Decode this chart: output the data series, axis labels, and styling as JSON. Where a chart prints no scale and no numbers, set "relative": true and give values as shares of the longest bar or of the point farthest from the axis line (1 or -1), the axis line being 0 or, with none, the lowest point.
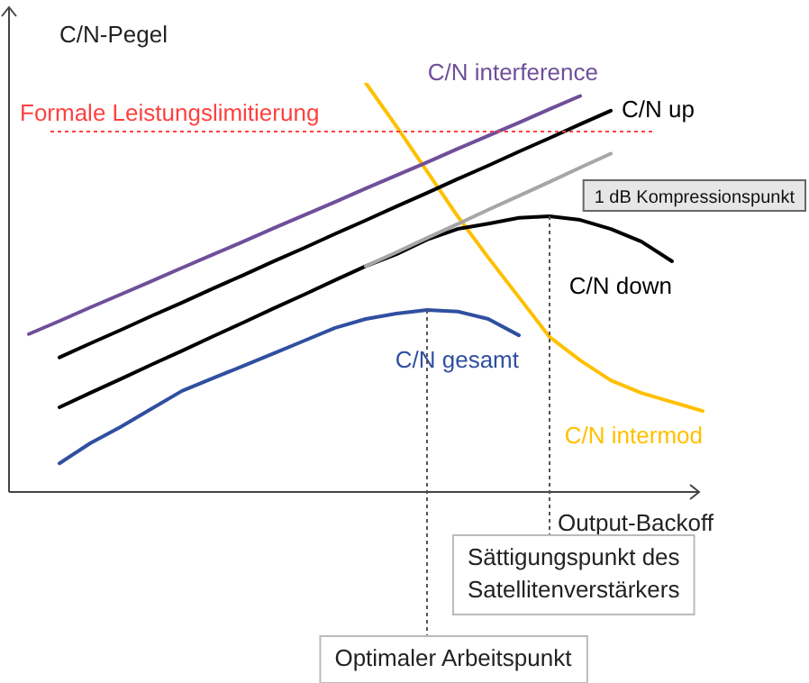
{
  "chart_data": {
    "type": "line",
    "relative": true,
    "tick_labels": false,
    "grid": false,
    "legend": false,
    "marker": "none",
    "line_style": "solid",
    "xlabel": "Output-Backoff",
    "ylabel": "C/N-Pegel",
    "categories": [
      null,
      null,
      null,
      null,
      null,
      null,
      null,
      null,
      null,
      null,
      null,
      null,
      null,
      null,
      null,
      null,
      null,
      null,
      null,
      null,
      null,
      null,
      null
    ],
    "series": [
      {
        "name": "C/N interference",
        "color": "#6f4f9a",
        "values": [
          0.386,
          0.418,
          0.451,
          0.483,
          0.515,
          0.548,
          0.58,
          0.612,
          0.645,
          0.677,
          0.709,
          0.742,
          0.774,
          0.806,
          0.839,
          0.871,
          0.903,
          0.936,
          0.968,
          null,
          null,
          null,
          null
        ]
      },
      {
        "name": "C/N up",
        "color": "#000000",
        "values": [
          null,
          0.329,
          0.363,
          0.396,
          0.43,
          0.463,
          0.497,
          0.53,
          0.564,
          0.597,
          0.631,
          0.664,
          0.698,
          0.731,
          0.765,
          0.798,
          0.832,
          0.865,
          0.899,
          0.932,
          null,
          null,
          null
        ]
      },
      {
        "color": "#a6a6a6",
        "values": [
          null,
          null,
          null,
          null,
          null,
          null,
          null,
          null,
          null,
          null,
          null,
          0.552,
          0.586,
          0.621,
          0.655,
          0.69,
          0.724,
          0.758,
          0.793,
          0.827,
          null,
          null,
          null
        ]
      },
      {
        "name": "C/N down",
        "color": "#000000",
        "values": [
          null,
          0.207,
          0.242,
          0.276,
          0.311,
          0.345,
          0.38,
          0.414,
          0.449,
          0.483,
          0.518,
          0.552,
          0.581,
          0.617,
          0.643,
          0.656,
          0.67,
          0.674,
          0.665,
          0.643,
          0.612,
          0.564,
          null
        ]
      },
      {
        "name": "C/N intermod",
        "color": "#ffc000",
        "values": [
          null,
          null,
          null,
          null,
          null,
          null,
          null,
          null,
          null,
          null,
          null,
          1.0,
          0.894,
          0.784,
          0.674,
          0.573,
          0.476,
          0.379,
          0.322,
          0.273,
          0.242,
          0.22,
          0.198
        ]
      },
      {
        "name": "C/N gesamt",
        "color": "#2f4fa0",
        "values": [
          null,
          0.07,
          0.119,
          0.159,
          0.203,
          0.247,
          0.278,
          0.308,
          0.339,
          0.37,
          0.401,
          0.423,
          0.436,
          0.445,
          0.441,
          0.423,
          0.383,
          null,
          null,
          null,
          null,
          null,
          null
        ]
      }
    ],
    "ref_lines": [
      {
        "axis": "y",
        "value": 0.881,
        "label": "Formale Leistungslimitierung",
        "color": "#ff4040",
        "line_style": "dotted"
      }
    ],
    "annotations": [
      "1 dB Kompressionspunkt",
      "Sättigungspunkt des Satellitenverstärkers",
      "Optimaler Arbeitspunkt"
    ]
  }
}
